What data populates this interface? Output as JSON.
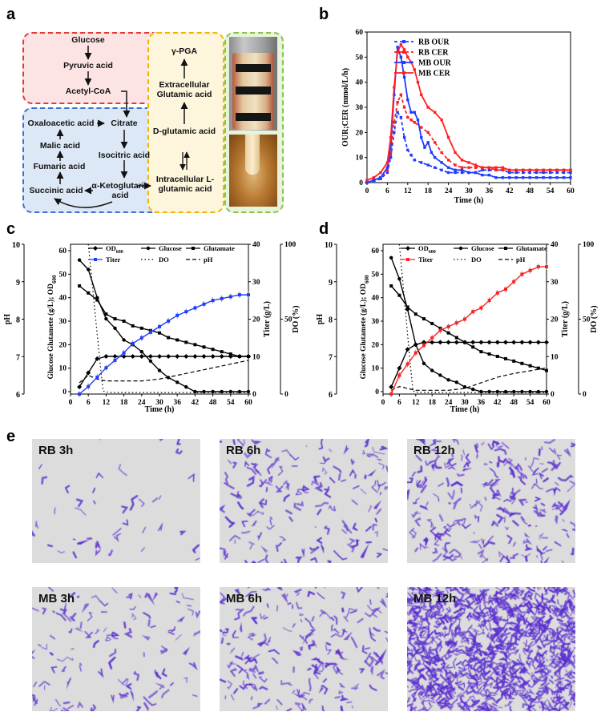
{
  "panels": {
    "a": "a",
    "b": "b",
    "c": "c",
    "d": "d",
    "e": "e"
  },
  "pathway": {
    "glucose": "Glucose",
    "pyruvic": "Pyruvic acid",
    "acetyl": "Acetyl-CoA",
    "oxaloacetic": "Oxaloacetic acid",
    "citrate": "Citrate",
    "malic": "Malic acid",
    "isocitric": "Isocitric acid",
    "fumaric": "Fumaric acid",
    "succinic": "Succinic acid",
    "ketoglutaric": "α-Ketoglutaric acid",
    "pga": "γ-PGA",
    "extracellular": "Extracellular Glutamic acid",
    "dglutamic": "D-glutamic acid",
    "intracellular": "Intracellular L-glutamic acid",
    "colors": {
      "red_box": "#e53935",
      "red_fill": "#fde4e4",
      "blue_box": "#3b6fd1",
      "blue_fill": "#dde8f7",
      "yellow_box": "#f4b400",
      "yellow_fill": "#fdf6dc",
      "green_box": "#8bc34a",
      "green_fill": "#e8f3dc"
    }
  },
  "chart_b": {
    "type": "line",
    "xlabel": "Time (h)",
    "ylabel": "OUR;CER (mmol/L/h)",
    "xlim": [
      0,
      60
    ],
    "ylim": [
      0,
      60
    ],
    "xticks": [
      0,
      6,
      12,
      18,
      24,
      30,
      36,
      42,
      48,
      54,
      60
    ],
    "yticks": [
      0,
      10,
      20,
      30,
      40,
      50,
      60
    ],
    "series": [
      {
        "name": "RB OUR",
        "color": "#1f3cff",
        "dash": "dashed",
        "x": [
          0,
          2,
          4,
          6,
          7,
          8,
          9,
          10,
          11,
          12,
          13,
          14,
          16,
          18,
          20,
          22,
          24,
          26,
          28,
          30,
          32,
          34,
          36,
          38,
          40,
          42,
          44,
          46,
          48,
          50,
          52,
          54,
          56,
          58,
          60
        ],
        "y": [
          0,
          0.5,
          1.5,
          4,
          10,
          20,
          28,
          26,
          18,
          13,
          11,
          9,
          8,
          7,
          6,
          5,
          4,
          4,
          4,
          4,
          4,
          5,
          5,
          5,
          5,
          4,
          4,
          4,
          4,
          4,
          4,
          4,
          4,
          4,
          4
        ]
      },
      {
        "name": "RB CER",
        "color": "#ff2020",
        "dash": "dashed",
        "x": [
          0,
          2,
          4,
          6,
          7,
          8,
          9,
          10,
          11,
          12,
          13,
          14,
          16,
          18,
          20,
          22,
          24,
          26,
          28,
          30,
          32,
          34,
          36,
          38,
          40,
          42,
          44,
          46,
          48,
          50,
          52,
          54,
          56,
          58,
          60
        ],
        "y": [
          0,
          1,
          2,
          5,
          12,
          24,
          32,
          35,
          30,
          26,
          25,
          24,
          22,
          20,
          16,
          12,
          9,
          7,
          6,
          6,
          6,
          6,
          6,
          5,
          5,
          5,
          5,
          5,
          5,
          5,
          5,
          5,
          5,
          5,
          5
        ]
      },
      {
        "name": "MB OUR",
        "color": "#1f3cff",
        "dash": "solid",
        "x": [
          0,
          2,
          4,
          6,
          7,
          8,
          9,
          10,
          11,
          12,
          13,
          14,
          15,
          16,
          17,
          18,
          19,
          20,
          22,
          24,
          26,
          28,
          30,
          32,
          34,
          36,
          38,
          40,
          42,
          44,
          46,
          48,
          50,
          52,
          54,
          56,
          58,
          60
        ],
        "y": [
          0,
          1,
          2,
          6,
          15,
          35,
          54,
          50,
          42,
          33,
          28,
          28,
          25,
          18,
          14,
          16,
          12,
          10,
          8,
          6,
          5,
          5,
          4,
          4,
          3,
          3,
          2,
          2,
          2,
          2,
          2,
          2,
          2,
          2,
          2,
          2,
          2,
          2
        ]
      },
      {
        "name": "MB CER",
        "color": "#ff2020",
        "dash": "solid",
        "x": [
          0,
          2,
          4,
          6,
          7,
          8,
          9,
          10,
          11,
          12,
          13,
          14,
          15,
          16,
          18,
          20,
          22,
          24,
          26,
          28,
          30,
          32,
          34,
          36,
          38,
          40,
          42,
          44,
          46,
          48,
          50,
          52,
          54,
          56,
          58,
          60
        ],
        "y": [
          1,
          2,
          4,
          8,
          18,
          38,
          52,
          55,
          53,
          50,
          48,
          45,
          40,
          35,
          30,
          28,
          25,
          18,
          12,
          9,
          8,
          7,
          6,
          6,
          6,
          6,
          5,
          5,
          5,
          5,
          5,
          5,
          5,
          5,
          5,
          5
        ]
      }
    ]
  },
  "chart_c": {
    "type": "line",
    "xlabel": "Time (h)",
    "ylabel_ph": "pH",
    "ylabel_main": "Glucose Glutamete (g/L); OD600",
    "ylabel_main_parts": [
      "Glucose Glutamete (g/L); OD",
      "600"
    ],
    "ylabel_titer": "Titer (g/L)",
    "ylabel_do": "DO (%)",
    "xlim": [
      0,
      60
    ],
    "ylim_main": [
      0,
      60
    ],
    "ylim_ph": [
      6,
      10
    ],
    "ylim_titer": [
      0,
      40
    ],
    "ylim_do": [
      0,
      100
    ],
    "xticks": [
      0,
      6,
      12,
      18,
      24,
      30,
      36,
      42,
      48,
      54,
      60
    ],
    "yticks_main": [
      0,
      10,
      20,
      30,
      40,
      50,
      60
    ],
    "yticks_ph": [
      6,
      7,
      8,
      9,
      10
    ],
    "yticks_titer": [
      0,
      10,
      20,
      30,
      40
    ],
    "yticks_do": [
      0,
      50,
      100
    ],
    "legend": {
      "od": "OD",
      "od_sub": "600",
      "glucose": "Glucose",
      "glutamate": "Glutamate",
      "titer": "Titer",
      "do": "DO",
      "ph": "pH"
    },
    "series": {
      "od": {
        "x": [
          3,
          6,
          9,
          12,
          15,
          18,
          21,
          24,
          27,
          30,
          33,
          36,
          39,
          42,
          45,
          48,
          51,
          54,
          57,
          60
        ],
        "y": [
          2,
          8,
          14,
          15,
          15,
          15,
          15,
          15,
          15,
          15,
          15,
          15,
          15,
          15,
          15,
          15,
          15,
          15,
          15,
          15
        ],
        "axis": "main",
        "color": "#000000"
      },
      "glucose": {
        "x": [
          3,
          6,
          9,
          12,
          15,
          18,
          21,
          24,
          27,
          30,
          33,
          36,
          39,
          42,
          45,
          48,
          51,
          54,
          57,
          60
        ],
        "y": [
          56,
          52,
          40,
          31,
          27,
          22,
          20,
          17,
          13,
          9,
          6,
          4,
          2,
          0,
          0,
          0,
          0,
          0,
          0,
          0
        ],
        "axis": "main",
        "color": "#000000"
      },
      "glutamate": {
        "x": [
          3,
          6,
          9,
          12,
          15,
          18,
          21,
          24,
          27,
          30,
          33,
          36,
          39,
          42,
          45,
          48,
          51,
          54,
          57,
          60
        ],
        "y": [
          45,
          42,
          39,
          33,
          31,
          30,
          28,
          27,
          26,
          25,
          23,
          22,
          21,
          20,
          19,
          18,
          17,
          16,
          15,
          15
        ],
        "axis": "main",
        "color": "#000000"
      },
      "titer": {
        "x": [
          3,
          6,
          9,
          12,
          15,
          18,
          21,
          24,
          27,
          30,
          33,
          36,
          39,
          42,
          45,
          48,
          51,
          54,
          57,
          60
        ],
        "y": [
          0,
          2,
          4.5,
          7,
          9,
          11,
          13.5,
          15,
          16.5,
          18,
          19.5,
          21,
          22,
          23,
          24,
          25,
          25.5,
          26,
          26.5,
          26.5
        ],
        "axis": "titer",
        "color": "#1f3cff"
      },
      "do": {
        "x": [
          6,
          8,
          10,
          11,
          13,
          18,
          30,
          42,
          60
        ],
        "y": [
          100,
          60,
          20,
          2,
          1,
          1,
          1,
          1,
          1
        ],
        "axis": "do",
        "color": "#000000",
        "dash": "dotted"
      },
      "ph": {
        "x": [
          3,
          6,
          9,
          12,
          18,
          24,
          30,
          36,
          42,
          48,
          54,
          60
        ],
        "y": [
          6.3,
          6.5,
          6.4,
          6.35,
          6.35,
          6.35,
          6.4,
          6.5,
          6.6,
          6.7,
          6.8,
          6.9
        ],
        "axis": "ph",
        "color": "#000000",
        "dash": "dashed"
      }
    }
  },
  "chart_d": {
    "type": "line",
    "xlabel": "Time (h)",
    "ylabel_ph": "pH",
    "ylabel_main": "Glucose Glutamete (g/L); OD600",
    "ylabel_main_parts": [
      "Glucose Glutamete (g/L); OD",
      "600"
    ],
    "ylabel_titer": "Titer (g/L)",
    "ylabel_do": "DO (%)",
    "xlim": [
      0,
      60
    ],
    "ylim_main": [
      0,
      60
    ],
    "ylim_ph": [
      6,
      10
    ],
    "ylim_titer": [
      0,
      40
    ],
    "ylim_do": [
      0,
      100
    ],
    "xticks": [
      0,
      6,
      12,
      18,
      24,
      30,
      36,
      42,
      48,
      54,
      60
    ],
    "yticks_main": [
      0,
      10,
      20,
      30,
      40,
      50,
      60
    ],
    "yticks_ph": [
      6,
      7,
      8,
      9,
      10
    ],
    "yticks_titer": [
      0,
      10,
      20,
      30,
      40
    ],
    "yticks_do": [
      0,
      50,
      100
    ],
    "legend": {
      "od": "OD",
      "od_sub": "600",
      "glucose": "Glucose",
      "glutamate": "Glutamate",
      "titer": "Titer",
      "do": "DO",
      "ph": "pH"
    },
    "series": {
      "od": {
        "x": [
          3,
          6,
          9,
          12,
          15,
          18,
          21,
          24,
          27,
          30,
          33,
          36,
          39,
          42,
          45,
          48,
          51,
          54,
          57,
          60
        ],
        "y": [
          2,
          10,
          18,
          20,
          21,
          21,
          21,
          21,
          21,
          21,
          21,
          21,
          21,
          21,
          21,
          21,
          21,
          21,
          21,
          21
        ],
        "axis": "main",
        "color": "#000000"
      },
      "glucose": {
        "x": [
          3,
          6,
          9,
          12,
          15,
          18,
          21,
          24,
          27,
          30,
          33,
          36,
          39,
          42,
          45,
          48,
          51,
          54,
          57,
          60
        ],
        "y": [
          57,
          48,
          35,
          20,
          12,
          9,
          7,
          5,
          4,
          2,
          1,
          0,
          0,
          0,
          0,
          0,
          0,
          0,
          0,
          0
        ],
        "axis": "main",
        "color": "#000000"
      },
      "glutamate": {
        "x": [
          3,
          6,
          9,
          12,
          15,
          18,
          21,
          24,
          27,
          30,
          33,
          36,
          39,
          42,
          45,
          48,
          51,
          54,
          57,
          60
        ],
        "y": [
          45,
          41,
          36,
          33,
          31,
          29,
          27,
          25,
          23,
          21,
          19,
          17,
          16,
          15,
          14,
          13,
          12,
          11,
          10,
          9
        ],
        "axis": "main",
        "color": "#000000"
      },
      "titer": {
        "x": [
          3,
          6,
          9,
          12,
          15,
          18,
          21,
          24,
          27,
          30,
          33,
          36,
          39,
          42,
          45,
          48,
          51,
          54,
          57,
          60
        ],
        "y": [
          0,
          5,
          8,
          11,
          13,
          15,
          17,
          18,
          19,
          20,
          22,
          23,
          25,
          27,
          28,
          30,
          32,
          33,
          34,
          34
        ],
        "axis": "titer",
        "color": "#ff2020"
      },
      "do": {
        "x": [
          6,
          8,
          10,
          11,
          13,
          18,
          30,
          42,
          60
        ],
        "y": [
          100,
          60,
          20,
          2,
          1,
          1,
          1,
          1,
          1
        ],
        "axis": "do",
        "color": "#000000",
        "dash": "dotted"
      },
      "ph": {
        "x": [
          3,
          6,
          9,
          12,
          18,
          24,
          30,
          36,
          42,
          48,
          54,
          60
        ],
        "y": [
          6.1,
          6.2,
          6.15,
          6.1,
          6.1,
          6.1,
          6.15,
          6.3,
          6.45,
          6.55,
          6.62,
          6.7
        ],
        "axis": "ph",
        "color": "#000000",
        "dash": "dashed"
      }
    }
  },
  "micrographs": [
    {
      "label": "RB 3h",
      "density": 40
    },
    {
      "label": "RB 6h",
      "density": 150
    },
    {
      "label": "RB 12h",
      "density": 230
    },
    {
      "label": "MB 3h",
      "density": 110
    },
    {
      "label": "MB 6h",
      "density": 180
    },
    {
      "label": "MB 12h",
      "density": 1100
    }
  ],
  "micro_colors": {
    "bg": "#dcdcdc",
    "cell": "#5a2fd0"
  }
}
